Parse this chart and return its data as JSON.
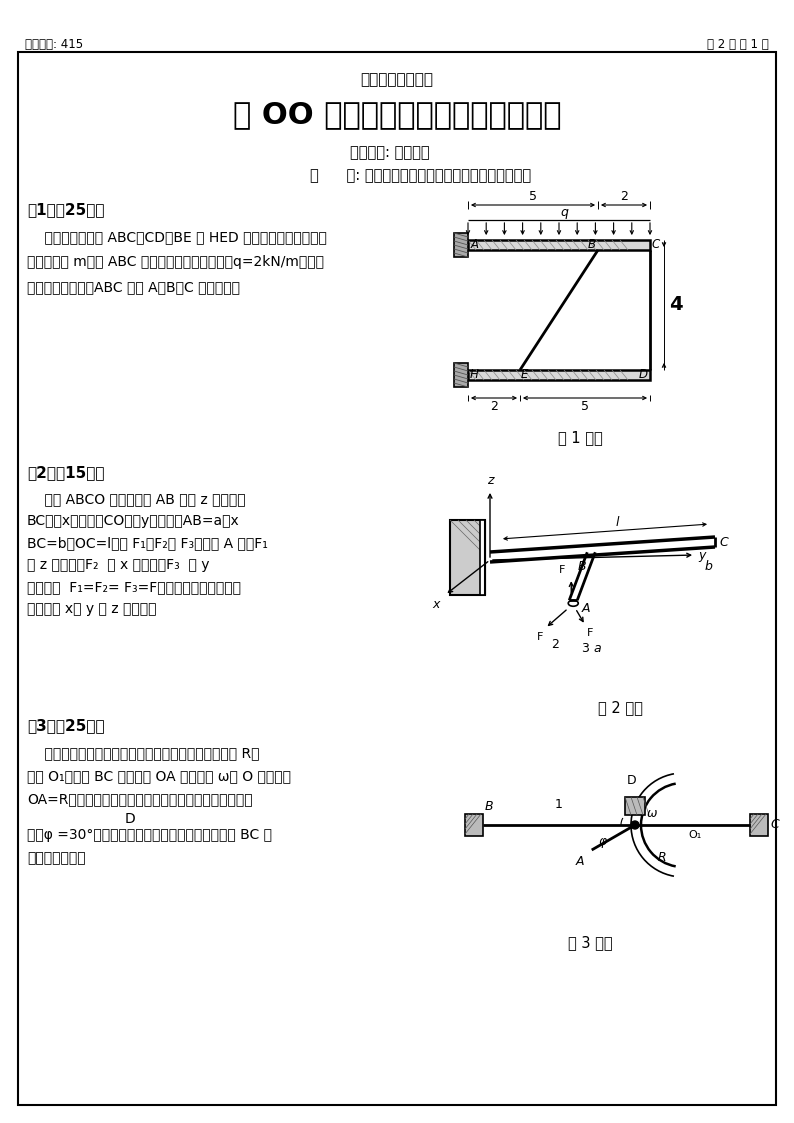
{
  "page_bg": "#ffffff",
  "header_left": "试题编号: 415",
  "header_right": "共 2 页 第 1 页",
  "school_name": "南京航空航天大学",
  "main_title": "二 OO 八年硕士研究生入学考试试题",
  "subject_line": "考试科目: 理论力学",
  "note_line": "说      明: 答案一律写在答题纸上，写在试卷上无效。",
  "q1_title": "第1题（25分）",
  "q1_body1": "    图示平面结构由 ABC、CD、BE 和 HED 四根杆件组成，尺寸如",
  "q1_body2": "图，单位为 m。在 ABC 杆上受到均布载荷作用，q=2kN/m，各杆",
  "q1_body3": "自重不计。试求：ABC 杆在 A、B、C 处的受力。",
  "q1_fig_label": "第 1 题图",
  "q2_title": "第2题（15分）",
  "q2_body1": "    构件 ABCO 如图，其中 AB 段与 z 轴平行，",
  "q2_body2": "BC段与x轴平行，CO段与y轴重合，AB=a，x",
  "q2_body3": "BC=b，OC=l，力 F₁、F₂和 F₃作用在 A 点，F₁",
  "q2_body4": "与 z 轴平行，F₂  与 x 轴平行，F₃  与 y",
  "q2_body5": "轴平行，  F₁=F₂= F₃=F。试求：该力系对图示",
  "q2_body6": "坐标系的 x、 y 和 z 轴的矩。",
  "q2_fig_label": "第 2 题图",
  "q3_title": "第3题（25分）",
  "q3_body1": "    图示曲柄滑杆机构中，滑杆上有圆弧滑道，其半径为 R，",
  "q3_body2": "圆心 O₁在导杆 BC 上，曲柄 OA 以匀角速 ω绕 O 轴转动，",
  "q3_body3": "OA=R。当机构运动到图示位置时，曲柄与水平线间的夹",
  "q3_body4": "角为φ =30°。试用点的合成运动方法求此瞬时滑杆 BC 的",
  "q3_body5": "速度和加速度。",
  "q3_body4b": "                D",
  "q3_fig_label": "第 3 题图"
}
